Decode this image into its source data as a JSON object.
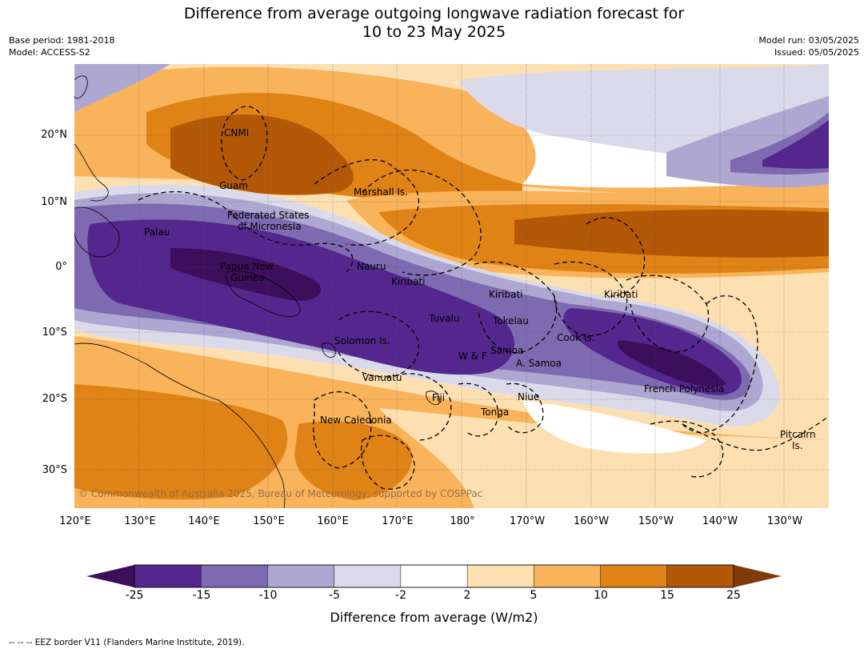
{
  "title": {
    "line1": "Difference from average outgoing longwave radiation forecast for",
    "line2": "10 to 23 May 2025"
  },
  "meta_left": {
    "base_period": "Base period: 1981-2018",
    "model": "Model: ACCESS-S2"
  },
  "meta_right": {
    "model_run": "Model run: 03/05/2025",
    "issued": "Issued: 05/05/2025"
  },
  "lat_ticks": [
    "20°N",
    "10°N",
    "0°",
    "10°S",
    "20°S",
    "30°S"
  ],
  "lon_ticks": [
    "120°E",
    "130°E",
    "140°E",
    "150°E",
    "160°E",
    "170°E",
    "180°",
    "170°W",
    "160°W",
    "150°W",
    "140°W",
    "130°W"
  ],
  "places": {
    "cnmi": "CNMI",
    "guam": "Guam",
    "marshall": "Marshall Is.",
    "fsm1": "Federated States",
    "fsm2": "of Micronesia",
    "palau": "Palau",
    "png1": "Papua New",
    "png2": "Guinea",
    "nauru": "Nauru",
    "kiribati_w": "Kiribati",
    "kiribati_c": "Kiribati",
    "kiribati_e": "Kiribati",
    "tuvalu": "Tuvalu",
    "tokelau": "Tokelau",
    "cook": "Cook Is.",
    "solomon": "Solomon Is.",
    "samoa": "Samoa",
    "wf": "W & F",
    "asamoa": "A. Samoa",
    "vanuatu": "Vanuatu",
    "fiji": "Fiji",
    "niue": "Niue",
    "tonga": "Tonga",
    "frpoly": "French Polynesia",
    "newcal": "New Caledonia",
    "pitcairn1": "Pitcairn",
    "pitcairn2": "Is."
  },
  "copyright": "© Commonwealth of Australia 2025, Bureau of Meteorology, supported by COSPPac",
  "colorbar": {
    "ticks": [
      "-25",
      "-15",
      "-10",
      "-5",
      "-2",
      "2",
      "5",
      "10",
      "15",
      "25"
    ],
    "colors": [
      "#3d0e5c",
      "#54278f",
      "#7d6ab0",
      "#aea7d2",
      "#dadaeb",
      "#ffffff",
      "#fde0b2",
      "#f9b35b",
      "#e08316",
      "#b35806",
      "#7f3b08"
    ],
    "label": "Difference from average (W/m2)"
  },
  "footnote": "--  --  -- EEZ border V11 (Flanders Marine Institute, 2019)."
}
